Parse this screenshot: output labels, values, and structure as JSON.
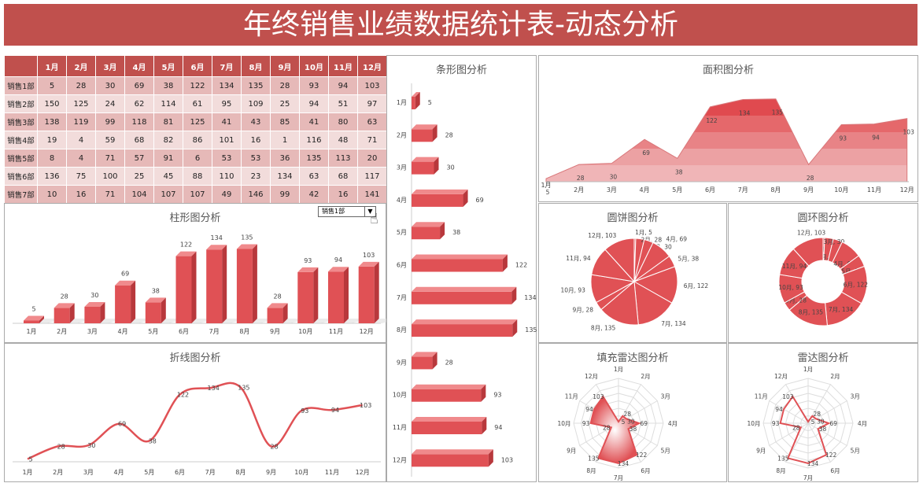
{
  "title": "年终销售业绩数据统计表-动态分析",
  "table": {
    "columns": [
      "1月",
      "2月",
      "3月",
      "4月",
      "5月",
      "6月",
      "7月",
      "8月",
      "9月",
      "10月",
      "11月",
      "12月"
    ],
    "rows": [
      {
        "name": "销售1部",
        "values": [
          5,
          28,
          30,
          69,
          38,
          122,
          134,
          135,
          28,
          93,
          94,
          103
        ]
      },
      {
        "name": "销售2部",
        "values": [
          150,
          125,
          24,
          62,
          114,
          61,
          95,
          109,
          25,
          94,
          51,
          97
        ]
      },
      {
        "name": "销售3部",
        "values": [
          138,
          119,
          99,
          118,
          81,
          125,
          41,
          43,
          85,
          41,
          80,
          63
        ]
      },
      {
        "name": "销售4部",
        "values": [
          19,
          4,
          59,
          68,
          82,
          86,
          101,
          16,
          1,
          116,
          48,
          71
        ]
      },
      {
        "name": "销售5部",
        "values": [
          8,
          4,
          71,
          57,
          91,
          6,
          53,
          53,
          36,
          135,
          113,
          20
        ]
      },
      {
        "name": "销售6部",
        "values": [
          136,
          75,
          100,
          25,
          45,
          88,
          110,
          23,
          134,
          63,
          68,
          117
        ]
      },
      {
        "name": "销售7部",
        "values": [
          10,
          16,
          71,
          104,
          107,
          107,
          49,
          146,
          99,
          42,
          16,
          141
        ]
      }
    ]
  },
  "dropdown": {
    "selected": "销售1部",
    "arrow_icon": "triangle-down-icon"
  },
  "colors": {
    "accent": "#c0504d",
    "series": "#e05155",
    "row_dark": "#e6b9b8",
    "row_light": "#f2dcdb"
  },
  "chart_data": [
    {
      "id": "column",
      "type": "bar",
      "orientation": "vertical",
      "title": "柱形图分析",
      "categories": [
        "1月",
        "2月",
        "3月",
        "4月",
        "5月",
        "6月",
        "7月",
        "8月",
        "9月",
        "10月",
        "11月",
        "12月"
      ],
      "values": [
        5,
        28,
        30,
        69,
        38,
        122,
        134,
        135,
        28,
        93,
        94,
        103
      ],
      "data_labels": true,
      "style": "3d"
    },
    {
      "id": "line",
      "type": "line",
      "smooth": true,
      "title": "折线图分析",
      "categories": [
        "1月",
        "2月",
        "3月",
        "4月",
        "5月",
        "6月",
        "7月",
        "8月",
        "9月",
        "10月",
        "11月",
        "12月"
      ],
      "values": [
        5,
        28,
        30,
        69,
        38,
        122,
        134,
        135,
        28,
        93,
        94,
        103
      ],
      "data_labels": true
    },
    {
      "id": "hbar",
      "type": "bar",
      "orientation": "horizontal",
      "title": "条形图分析",
      "categories": [
        "1月",
        "2月",
        "3月",
        "4月",
        "5月",
        "6月",
        "7月",
        "8月",
        "9月",
        "10月",
        "11月",
        "12月"
      ],
      "values": [
        5,
        28,
        30,
        69,
        38,
        122,
        134,
        135,
        28,
        93,
        94,
        103
      ],
      "data_labels": true,
      "style": "3d"
    },
    {
      "id": "area",
      "type": "area",
      "title": "面积图分析",
      "categories": [
        "1月",
        "2月",
        "3月",
        "4月",
        "5月",
        "6月",
        "7月",
        "8月",
        "9月",
        "10月",
        "11月",
        "12月"
      ],
      "values": [
        5,
        28,
        30,
        69,
        38,
        122,
        134,
        135,
        28,
        93,
        94,
        103
      ],
      "data_labels": true
    },
    {
      "id": "pie",
      "type": "pie",
      "title": "圆饼图分析",
      "categories": [
        "1月",
        "2月",
        "3月",
        "4月",
        "5月",
        "6月",
        "7月",
        "8月",
        "9月",
        "10月",
        "11月",
        "12月"
      ],
      "values": [
        5,
        28,
        30,
        69,
        38,
        122,
        134,
        135,
        28,
        93,
        94,
        103
      ],
      "data_labels": "category, value"
    },
    {
      "id": "donut",
      "type": "pie",
      "donut": true,
      "title": "圆环图分析",
      "categories": [
        "1月",
        "2月",
        "3月",
        "4月",
        "5月",
        "6月",
        "7月",
        "8月",
        "9月",
        "10月",
        "11月",
        "12月"
      ],
      "values": [
        5,
        28,
        30,
        69,
        38,
        122,
        134,
        135,
        28,
        93,
        94,
        103
      ],
      "data_labels": "category, value"
    },
    {
      "id": "radarfill",
      "type": "radar",
      "filled": true,
      "title": "填充雷达图分析",
      "categories": [
        "1月",
        "2月",
        "3月",
        "4月",
        "5月",
        "6月",
        "7月",
        "8月",
        "9月",
        "10月",
        "11月",
        "12月"
      ],
      "values": [
        5,
        28,
        30,
        69,
        38,
        122,
        134,
        135,
        28,
        93,
        94,
        103
      ],
      "data_labels": true
    },
    {
      "id": "radar",
      "type": "radar",
      "filled": false,
      "title": "雷达图分析",
      "categories": [
        "1月",
        "2月",
        "3月",
        "4月",
        "5月",
        "6月",
        "7月",
        "8月",
        "9月",
        "10月",
        "11月",
        "12月"
      ],
      "values": [
        5,
        28,
        30,
        69,
        38,
        122,
        134,
        135,
        28,
        93,
        94,
        103
      ],
      "data_labels": true
    }
  ]
}
